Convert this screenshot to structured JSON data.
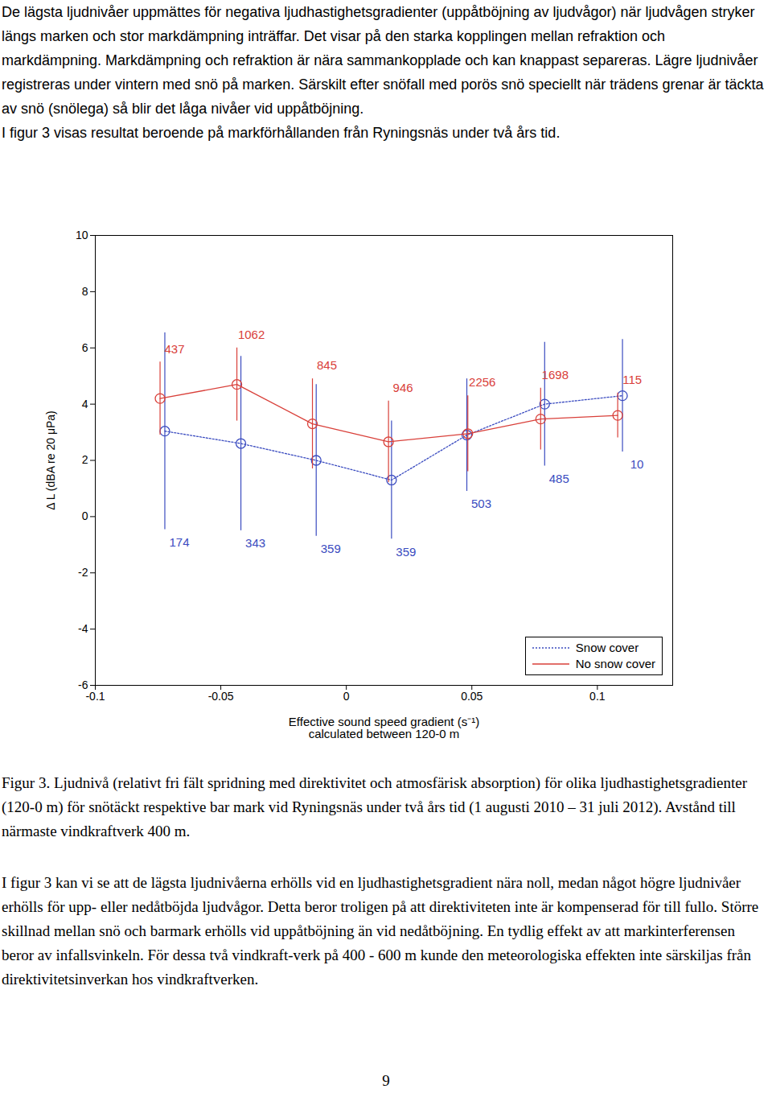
{
  "paragraphs_before": [
    "De lägsta ljudnivåer uppmättes för negativa ljudhastighetsgradienter (uppåtböjning av ljudvågor) när ljudvågen stryker längs marken och stor markdämpning inträffar. Det visar på den starka kopplingen mellan refraktion och markdämpning. Markdämpning och refraktion är nära sammankopplade och kan knappast separeras. Lägre ljudnivåer registreras under vintern med snö på marken. Särskilt efter snöfall med porös snö speciellt när trädens grenar är täckta av snö (snölega) så blir det låga nivåer vid uppåtböjning.",
    "I figur 3 visas resultat beroende på markförhållanden från Ryningsnäs under två års tid."
  ],
  "chart_data": {
    "type": "line",
    "xlabel": "Effective sound speed gradient (s⁻¹)\ncalculated between 120-0 m",
    "ylabel": "Δ L (dBA re 20 μPa)",
    "xlim": [
      -0.1,
      0.13
    ],
    "xticks": [
      -0.1,
      -0.05,
      0,
      0.05,
      0.1
    ],
    "ylim": [
      -6,
      10
    ],
    "yticks": [
      -6,
      -4,
      -2,
      0,
      2,
      4,
      6,
      8,
      10
    ],
    "grid": false,
    "legend": "bottom-right",
    "series": [
      {
        "name": "Snow cover",
        "color": "#3b4cc0",
        "line_style": "dotted",
        "marker": "circle",
        "x": [
          -0.0723,
          -0.042,
          -0.012,
          0.018,
          0.048,
          0.079,
          0.11
        ],
        "values": [
          3.04,
          2.6,
          2.0,
          1.3,
          2.9,
          4.0,
          4.3
        ],
        "errors": [
          3.5,
          3.1,
          2.7,
          2.1,
          2.0,
          2.2,
          2.0
        ],
        "counts": [
          174,
          343,
          359,
          359,
          503,
          485,
          10
        ]
      },
      {
        "name": "No snow cover",
        "color": "#d9403a",
        "line_style": "solid",
        "marker": "circle",
        "x": [
          -0.0742,
          -0.0436,
          -0.0135,
          0.0168,
          0.0484,
          0.0774,
          0.1081
        ],
        "values": [
          4.2,
          4.7,
          3.3,
          2.66,
          2.95,
          3.47,
          3.6
        ],
        "errors": [
          1.3,
          1.3,
          1.6,
          1.45,
          1.35,
          1.1,
          0.8
        ],
        "counts": [
          437,
          1062,
          845,
          946,
          2256,
          1698,
          115
        ]
      }
    ]
  },
  "caption": "Figur 3. Ljudnivå (relativt fri fält spridning med direktivitet och atmosfärisk absorption) för olika ljudhastighetsgradienter (120-0 m) för snötäckt respektive bar mark vid Ryningsnäs under två års tid (1 augusti 2010 – 31 juli  2012). Avstånd till närmaste vindkraftverk 400 m.",
  "paragraphs_after": [
    "I figur 3 kan vi se att de lägsta ljudnivåerna erhölls vid en ljudhastighetsgradient nära noll, medan något högre ljudnivåer erhölls för upp- eller nedåtböjda ljudvågor. Detta beror troligen på att direktiviteten inte är kompenserad för till fullo. Större skillnad mellan snö och barmark erhölls vid uppåtböjning än vid nedåtböjning. En tydlig effekt av att markinterferensen beror av infallsvinkeln. För dessa två vindkraft-verk på 400 - 600 m kunde den meteorologiska effekten inte särskiljas från direktivitetsinverkan hos vindkraftverken."
  ],
  "page_number": 9
}
